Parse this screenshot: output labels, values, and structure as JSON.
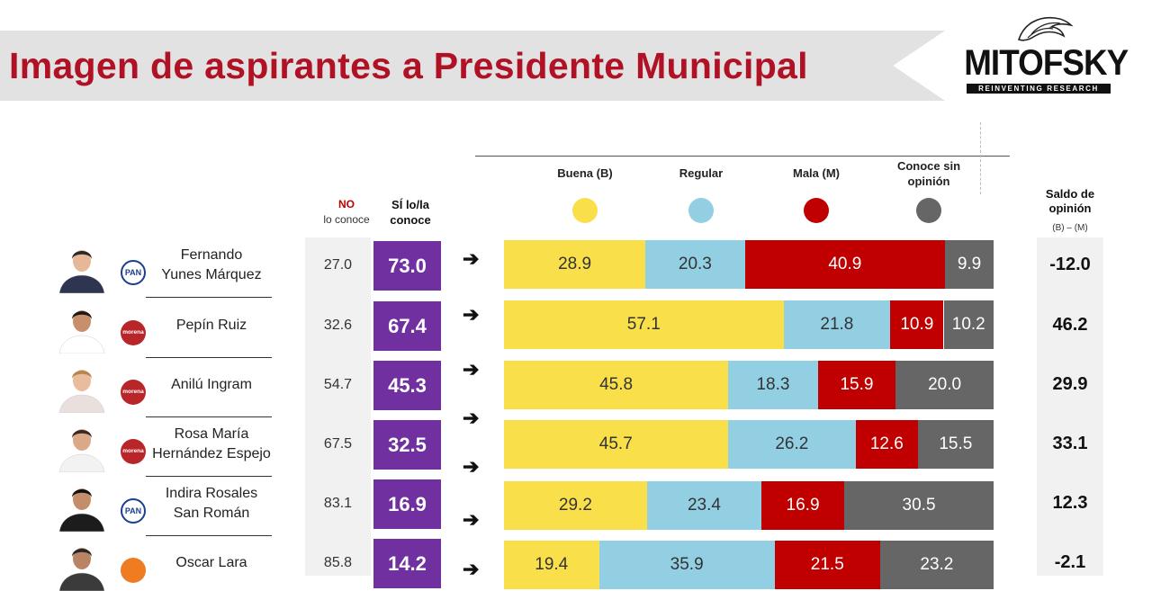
{
  "header": {
    "title": "Imagen de aspirantes a Presidente Municipal",
    "logo_word": "MITOFSKY",
    "logo_tagline": "REINVENTING RESEARCH"
  },
  "columns": {
    "no_red": "NO",
    "no_rest": "lo conoce",
    "si_line1": "SÍ lo/la",
    "si_line2": "conoce",
    "saldo_line1": "Saldo de",
    "saldo_line2": "opinión",
    "saldo_formula": "(B) – (M)"
  },
  "legend": [
    {
      "label_lines": [
        "Buena (B)"
      ],
      "color": "#f9e04b"
    },
    {
      "label_lines": [
        "Regular"
      ],
      "color": "#93cfe3"
    },
    {
      "label_lines": [
        "Mala (M)"
      ],
      "color": "#c00000"
    },
    {
      "label_lines": [
        "Conoce sin",
        "opinión"
      ],
      "color": "#666666"
    }
  ],
  "candidates": [
    {
      "name_lines": [
        "Fernando",
        "Yunes Márquez"
      ],
      "party": "PAN",
      "no": "27.0",
      "si": "73.0",
      "saldo": "-12.0"
    },
    {
      "name_lines": [
        "Pepín Ruiz"
      ],
      "party": "morena",
      "no": "32.6",
      "si": "67.4",
      "saldo": "46.2"
    },
    {
      "name_lines": [
        "Anilú Ingram"
      ],
      "party": "morena",
      "no": "54.7",
      "si": "45.3",
      "saldo": "29.9"
    },
    {
      "name_lines": [
        "Rosa María",
        "Hernández Espejo"
      ],
      "party": "morena",
      "no": "67.5",
      "si": "32.5",
      "saldo": "33.1"
    },
    {
      "name_lines": [
        "Indira Rosales",
        "San Román"
      ],
      "party": "PAN",
      "no": "83.1",
      "si": "16.9",
      "saldo": "12.3"
    },
    {
      "name_lines": [
        "Oscar Lara"
      ],
      "party": "MC",
      "no": "85.8",
      "si": "14.2",
      "saldo": "-2.1"
    }
  ],
  "chart_data": {
    "type": "bar",
    "orientation": "horizontal",
    "stacked": true,
    "title": "Imagen de aspirantes a Presidente Municipal",
    "categories": [
      "Fernando Yunes Márquez",
      "Pepín Ruiz",
      "Anilú Ingram",
      "Rosa María Hernández Espejo",
      "Indira Rosales San Román",
      "Oscar Lara"
    ],
    "series": [
      {
        "name": "Buena (B)",
        "color": "#f9e04b",
        "text_color": "#333333",
        "values": [
          28.9,
          57.1,
          45.8,
          45.7,
          29.2,
          19.4
        ]
      },
      {
        "name": "Regular",
        "color": "#93cfe3",
        "text_color": "#333333",
        "values": [
          20.3,
          21.8,
          18.3,
          26.2,
          23.4,
          35.9
        ]
      },
      {
        "name": "Mala (M)",
        "color": "#c00000",
        "text_color": "#ffffff",
        "values": [
          40.9,
          10.9,
          15.9,
          12.6,
          16.9,
          21.5
        ]
      },
      {
        "name": "Conoce sin opinión",
        "color": "#666666",
        "text_color": "#ffffff",
        "values": [
          9.9,
          10.2,
          20.0,
          15.5,
          30.5,
          23.2
        ]
      }
    ],
    "xlim": [
      0,
      100
    ],
    "legend_position": "top",
    "grid": false
  }
}
